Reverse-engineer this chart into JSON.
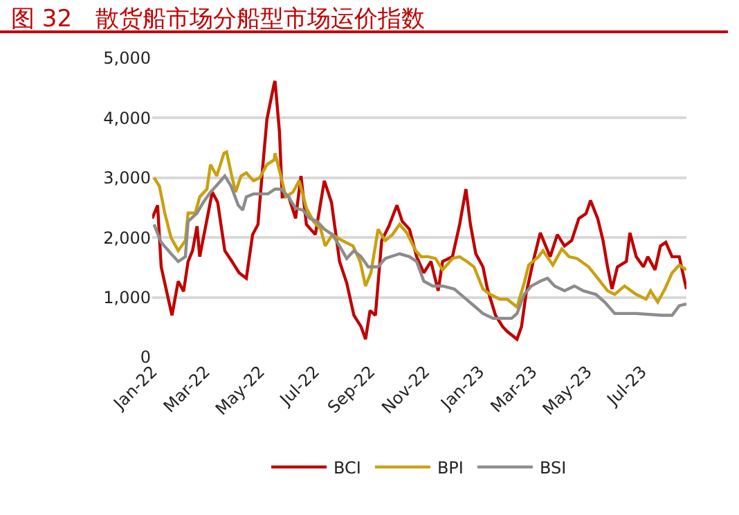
{
  "chart_data": {
    "type": "line",
    "title": "图 32　散货船市场分船型市场运价指数",
    "xlim": [
      "2022-01-01",
      "2023-08-20"
    ],
    "xticks": [
      {
        "value": "2022-01-01",
        "label": "Jan-22"
      },
      {
        "value": "2022-03-01",
        "label": "Mar-22"
      },
      {
        "value": "2022-05-01",
        "label": "May-22"
      },
      {
        "value": "2022-07-01",
        "label": "Jul-22"
      },
      {
        "value": "2022-09-01",
        "label": "Sep-22"
      },
      {
        "value": "2022-11-01",
        "label": "Nov-22"
      },
      {
        "value": "2023-01-01",
        "label": "Jan-23"
      },
      {
        "value": "2023-03-01",
        "label": "Mar-23"
      },
      {
        "value": "2023-05-01",
        "label": "May-23"
      },
      {
        "value": "2023-07-01",
        "label": "Jul-23"
      }
    ],
    "ylim": [
      0,
      5000
    ],
    "yticks": [
      0,
      {
        "value": 1000,
        "label": "1,000"
      },
      {
        "value": 2000,
        "label": "2,000"
      },
      {
        "value": 3000,
        "label": "3,000"
      },
      {
        "value": 4000,
        "label": "4,000"
      },
      {
        "value": 5000,
        "label": "5,000"
      }
    ],
    "grid": "y",
    "legend": "bottom",
    "marker": "none",
    "line_style": "solid",
    "series": [
      {
        "name": "BCI",
        "color": "#c00000",
        "x": [
          "2022-01-01",
          "2022-01-07",
          "2022-01-11",
          "2022-01-19",
          "2022-01-23",
          "2022-01-30",
          "2022-02-05",
          "2022-02-10",
          "2022-02-15",
          "2022-02-20",
          "2022-02-23",
          "2022-03-09",
          "2022-03-15",
          "2022-03-23",
          "2022-03-31",
          "2022-04-08",
          "2022-04-16",
          "2022-04-23",
          "2022-04-29",
          "2022-05-04",
          "2022-05-09",
          "2022-05-17",
          "2022-05-18",
          "2022-05-23",
          "2022-05-26",
          "2022-06-02",
          "2022-06-10",
          "2022-06-16",
          "2022-06-22",
          "2022-07-02",
          "2022-07-12",
          "2022-07-20",
          "2022-07-29",
          "2022-08-06",
          "2022-08-14",
          "2022-08-22",
          "2022-08-27",
          "2022-09-01",
          "2022-09-07",
          "2022-09-14",
          "2022-09-22",
          "2022-10-01",
          "2022-10-07",
          "2022-10-15",
          "2022-10-23",
          "2022-10-31",
          "2022-11-08",
          "2022-11-16",
          "2022-11-21",
          "2022-12-02",
          "2022-12-10",
          "2022-12-17",
          "2022-12-22",
          "2022-12-28",
          "2023-01-05",
          "2023-01-10",
          "2023-01-19",
          "2023-01-27",
          "2023-02-01",
          "2023-02-12",
          "2023-02-17",
          "2023-02-22",
          "2023-03-02",
          "2023-03-10",
          "2023-03-16",
          "2023-03-21",
          "2023-03-29",
          "2023-04-06",
          "2023-04-14",
          "2023-04-22",
          "2023-04-30",
          "2023-05-05",
          "2023-05-13",
          "2023-05-19",
          "2023-05-24",
          "2023-05-29",
          "2023-06-04",
          "2023-06-14",
          "2023-06-18",
          "2023-06-25",
          "2023-07-03",
          "2023-07-08",
          "2023-07-16",
          "2023-07-22",
          "2023-07-28",
          "2023-08-04",
          "2023-08-12",
          "2023-08-16",
          "2023-08-20"
        ],
        "values": [
          2320,
          2540,
          1510,
          970,
          700,
          1270,
          1100,
          1600,
          1780,
          2190,
          1680,
          2760,
          2590,
          1780,
          1600,
          1410,
          1320,
          2050,
          2220,
          3130,
          3980,
          4570,
          4620,
          3760,
          2680,
          2700,
          2320,
          3030,
          2220,
          2050,
          2950,
          2590,
          1600,
          1240,
          700,
          510,
          300,
          780,
          700,
          1950,
          2190,
          2540,
          2270,
          2140,
          1680,
          1410,
          1600,
          1110,
          1600,
          1680,
          2220,
          2810,
          2220,
          1730,
          1510,
          1140,
          700,
          510,
          430,
          300,
          510,
          1050,
          1600,
          2080,
          1860,
          1680,
          2050,
          1860,
          1950,
          2320,
          2400,
          2620,
          2320,
          1950,
          1510,
          1140,
          1510,
          1600,
          2080,
          1680,
          1510,
          1680,
          1460,
          1860,
          1920,
          1680,
          1680,
          1410,
          1140
        ]
      },
      {
        "name": "BPI",
        "color": "#c9a010",
        "x": [
          "2022-01-03",
          "2022-01-09",
          "2022-01-15",
          "2022-01-22",
          "2022-01-30",
          "2022-02-07",
          "2022-02-10",
          "2022-02-18",
          "2022-02-23",
          "2022-03-03",
          "2022-03-07",
          "2022-03-14",
          "2022-03-22",
          "2022-03-25",
          "2022-03-30",
          "2022-04-04",
          "2022-04-10",
          "2022-04-16",
          "2022-04-24",
          "2022-05-01",
          "2022-05-09",
          "2022-05-17",
          "2022-05-18",
          "2022-05-25",
          "2022-05-30",
          "2022-06-07",
          "2022-06-14",
          "2022-06-22",
          "2022-06-30",
          "2022-07-08",
          "2022-07-13",
          "2022-07-21",
          "2022-08-01",
          "2022-08-13",
          "2022-08-21",
          "2022-08-27",
          "2022-09-02",
          "2022-09-10",
          "2022-09-18",
          "2022-09-26",
          "2022-10-04",
          "2022-10-12",
          "2022-10-22",
          "2022-10-28",
          "2022-11-05",
          "2022-11-13",
          "2022-11-21",
          "2022-12-02",
          "2022-12-10",
          "2022-12-18",
          "2022-12-26",
          "2023-01-05",
          "2023-01-13",
          "2023-01-24",
          "2023-02-01",
          "2023-02-12",
          "2023-02-20",
          "2023-02-25",
          "2023-03-08",
          "2023-03-13",
          "2023-03-24",
          "2023-04-03",
          "2023-04-11",
          "2023-04-20",
          "2023-05-03",
          "2023-05-13",
          "2023-05-24",
          "2023-06-01",
          "2023-06-12",
          "2023-06-25",
          "2023-07-06",
          "2023-07-11",
          "2023-07-19",
          "2023-07-27",
          "2023-08-04",
          "2023-08-12",
          "2023-08-20"
        ],
        "values": [
          3000,
          2860,
          2410,
          2000,
          1780,
          1950,
          2410,
          2410,
          2680,
          2810,
          3220,
          3030,
          3410,
          3430,
          3080,
          2760,
          3030,
          3080,
          2950,
          3000,
          3220,
          3300,
          3410,
          3000,
          2680,
          2760,
          2950,
          2490,
          2270,
          2140,
          1860,
          2050,
          1950,
          1860,
          1600,
          1190,
          1410,
          2140,
          1950,
          2050,
          2220,
          2080,
          1780,
          1680,
          1680,
          1650,
          1460,
          1650,
          1680,
          1600,
          1510,
          1140,
          1050,
          970,
          970,
          840,
          1240,
          1540,
          1680,
          1780,
          1540,
          1810,
          1680,
          1650,
          1510,
          1320,
          1110,
          1050,
          1190,
          1050,
          970,
          1110,
          920,
          1140,
          1410,
          1540,
          1460
        ]
      },
      {
        "name": "BSI",
        "color": "#8c8c8c",
        "x": [
          "2022-01-03",
          "2022-01-11",
          "2022-01-22",
          "2022-01-30",
          "2022-02-07",
          "2022-02-10",
          "2022-02-20",
          "2022-02-27",
          "2022-03-07",
          "2022-03-15",
          "2022-03-23",
          "2022-03-30",
          "2022-04-07",
          "2022-04-12",
          "2022-04-16",
          "2022-04-24",
          "2022-05-10",
          "2022-05-18",
          "2022-05-25",
          "2022-06-02",
          "2022-06-10",
          "2022-06-18",
          "2022-06-26",
          "2022-07-04",
          "2022-07-12",
          "2022-07-21",
          "2022-07-29",
          "2022-08-06",
          "2022-08-14",
          "2022-08-22",
          "2022-08-30",
          "2022-09-10",
          "2022-09-18",
          "2022-10-04",
          "2022-10-15",
          "2022-10-23",
          "2022-10-31",
          "2022-11-10",
          "2022-11-21",
          "2022-12-04",
          "2022-12-15",
          "2022-12-26",
          "2023-01-05",
          "2023-01-16",
          "2023-02-06",
          "2023-02-12",
          "2023-02-20",
          "2023-02-28",
          "2023-03-10",
          "2023-03-18",
          "2023-03-26",
          "2023-04-06",
          "2023-04-17",
          "2023-04-27",
          "2023-05-11",
          "2023-05-21",
          "2023-06-01",
          "2023-06-25",
          "2023-07-24",
          "2023-08-04",
          "2023-08-12",
          "2023-08-20"
        ],
        "values": [
          2220,
          1920,
          1730,
          1600,
          1680,
          2270,
          2410,
          2590,
          2760,
          2890,
          3030,
          2860,
          2540,
          2460,
          2680,
          2730,
          2730,
          2810,
          2810,
          2680,
          2490,
          2460,
          2320,
          2270,
          2140,
          2050,
          1860,
          1650,
          1780,
          1680,
          1510,
          1510,
          1650,
          1730,
          1680,
          1600,
          1270,
          1190,
          1190,
          1140,
          1000,
          860,
          730,
          650,
          650,
          730,
          1050,
          1190,
          1270,
          1320,
          1190,
          1110,
          1190,
          1110,
          1050,
          920,
          730,
          730,
          700,
          700,
          860,
          890
        ]
      }
    ]
  }
}
